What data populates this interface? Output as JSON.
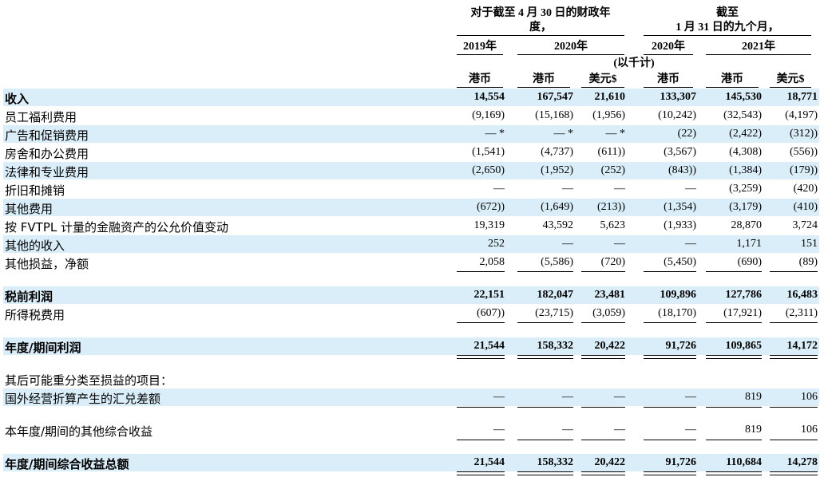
{
  "header": {
    "group1_line1": "对于截至 4 月 30 日的财政年",
    "group1_line2": "度，",
    "group2_line1": "截至",
    "group2_line2": "1 月 31 日的九个月，",
    "years": [
      "2019年",
      "2020年",
      "2020年",
      "2021年"
    ],
    "unit_note": "(以千计)",
    "currencies": [
      "港币",
      "港币",
      "美元$",
      "港币",
      "港币",
      "美元$"
    ]
  },
  "rows": [
    {
      "label": "收入",
      "values": [
        "14,554",
        "167,547",
        "21,610",
        "133,307",
        "145,530",
        "18,771"
      ]
    },
    {
      "label": "员工福利费用",
      "values": [
        "(9,169)",
        "(15,168)",
        "(1,956)",
        "(10,242)",
        "(32,543)",
        "(4,197)"
      ]
    },
    {
      "label": "广告和促销费用",
      "values": [
        "— *",
        "— *",
        "— *",
        "(22)",
        "(2,422)",
        "(312))"
      ]
    },
    {
      "label": "房舍和办公费用",
      "values": [
        "(1,541)",
        "(4,737)",
        "(611))",
        "(3,567)",
        "(4,308)",
        "(556))"
      ]
    },
    {
      "label": "法律和专业费用",
      "values": [
        "(2,650)",
        "(1,952)",
        "(252)",
        "(843))",
        "(1,384)",
        "(179))"
      ]
    },
    {
      "label": "折旧和摊销",
      "values": [
        "—",
        "—",
        "—",
        "—",
        "(3,259)",
        "(420)"
      ]
    },
    {
      "label": "其他费用",
      "values": [
        "(672))",
        "(1,649)",
        "(213))",
        "(1,354)",
        "(3,179)",
        "(410)"
      ]
    },
    {
      "label": "按 FVTPL 计量的金融资产的公允价值变动",
      "values": [
        "19,319",
        "43,592",
        "5,623",
        "(1,933)",
        "28,870",
        "3,724"
      ]
    },
    {
      "label": "其他的收入",
      "values": [
        "252",
        "—",
        "—",
        "—",
        "1,171",
        "151"
      ]
    },
    {
      "label": "其他损益，净额",
      "values": [
        "2,058",
        "(5,586)",
        "(720)",
        "(5,450)",
        "(690)",
        "(89)"
      ]
    },
    {
      "label": "税前利润",
      "values": [
        "22,151",
        "182,047",
        "23,481",
        "109,896",
        "127,786",
        "16,483"
      ]
    },
    {
      "label": "所得税费用",
      "values": [
        "(607))",
        "(23,715)",
        "(3,059)",
        "(18,170)",
        "(17,921)",
        "(2,311)"
      ]
    },
    {
      "label": "年度/期间利润",
      "values": [
        "21,544",
        "158,332",
        "20,422",
        "91,726",
        "109,865",
        "14,172"
      ]
    },
    {
      "label": "其后可能重分类至损益的项目：",
      "values": []
    },
    {
      "label": "国外经营折算产生的汇兑差额",
      "values": [
        "—",
        "—",
        "—",
        "—",
        "819",
        "106"
      ]
    },
    {
      "label": "本年度/期间的其他综合收益",
      "values": [
        "—",
        "—",
        "—",
        "—",
        "819",
        "106"
      ]
    },
    {
      "label": "年度/期间综合收益总额",
      "values": [
        "21,544",
        "158,332",
        "20,422",
        "91,726",
        "110,684",
        "14,278"
      ]
    }
  ]
}
